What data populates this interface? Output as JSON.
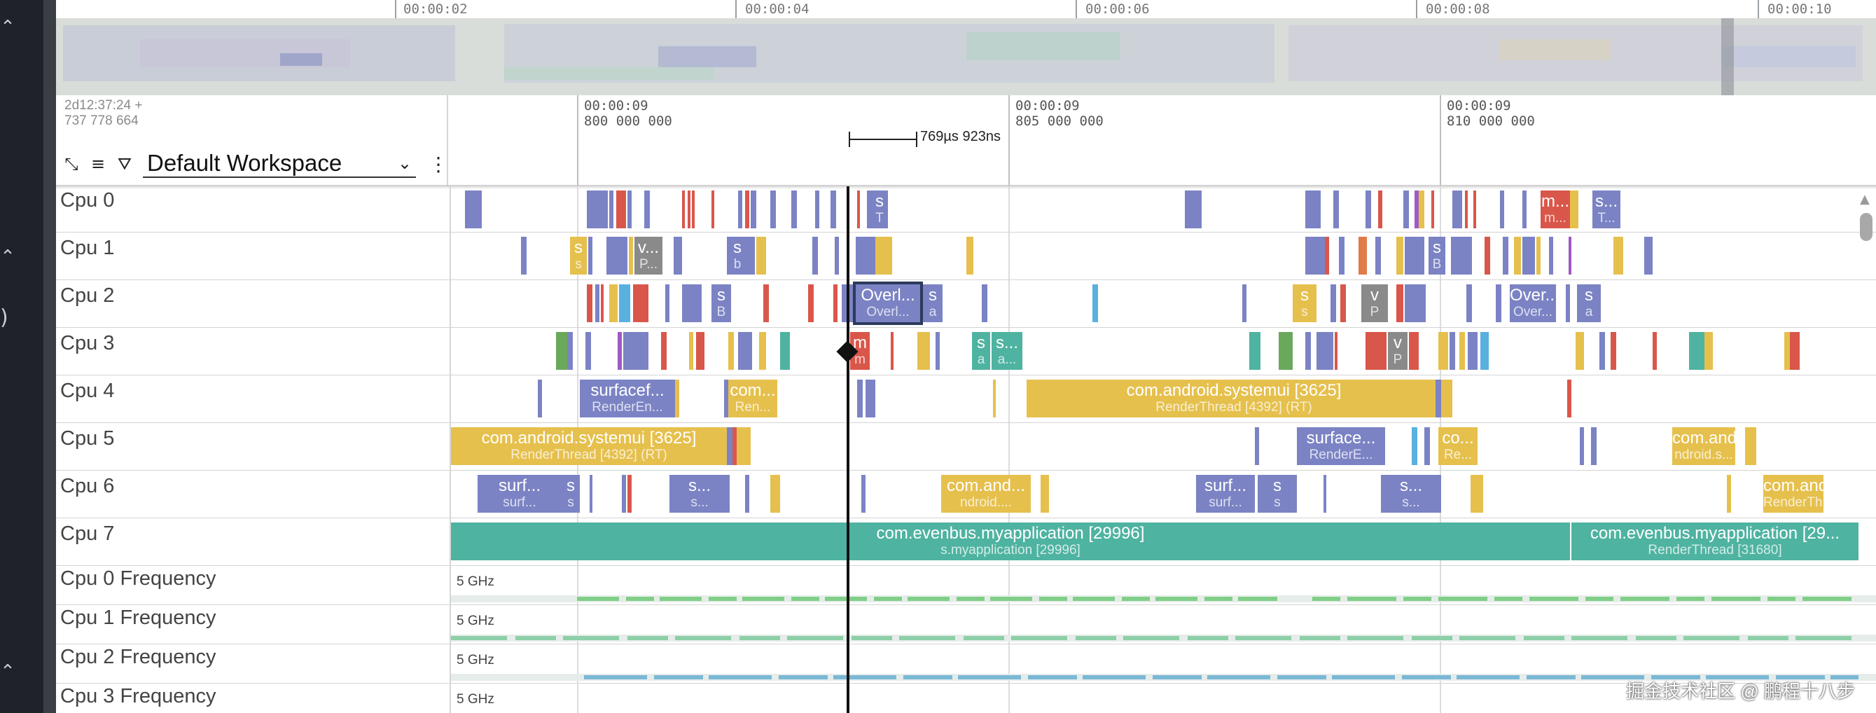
{
  "overview": {
    "ticks": [
      "00:00:02",
      "00:00:04",
      "00:00:06",
      "00:00:08",
      "00:00:10"
    ]
  },
  "header": {
    "time_origin_line1": "2d12:37:24  +",
    "time_origin_line2": "737 778 664",
    "workspace": "Default Workspace",
    "ticks": [
      {
        "line1": "00:00:09",
        "line2": "800 000 000"
      },
      {
        "line1": "00:00:09",
        "line2": "805 000 000"
      },
      {
        "line1": "00:00:09",
        "line2": "810 000 000"
      }
    ],
    "span_label": "769µs 923ns"
  },
  "tracks": {
    "cpu0": "Cpu 0",
    "cpu1": "Cpu 1",
    "cpu2": "Cpu 2",
    "cpu3": "Cpu 3",
    "cpu4": "Cpu 4",
    "cpu5": "Cpu 5",
    "cpu6": "Cpu 6",
    "cpu7": "Cpu 7",
    "freq0": "Cpu 0 Frequency",
    "freq1": "Cpu 1 Frequency",
    "freq2": "Cpu 2 Frequency",
    "freq3": "Cpu 3 Frequency"
  },
  "freq_scale": "5 GHz",
  "slices": {
    "cpu0_a": {
      "t1": "s",
      "t2": "T"
    },
    "cpu0_b": {
      "t1": "m...",
      "t2": "m..."
    },
    "cpu0_c": {
      "t1": "s...",
      "t2": "T..."
    },
    "cpu1_a": {
      "t1": "s",
      "t2": "s"
    },
    "cpu1_b": {
      "t1": "v...",
      "t2": "P..."
    },
    "cpu1_c": {
      "t1": "s",
      "t2": "b"
    },
    "cpu1_d": {
      "t1": "s",
      "t2": "B"
    },
    "cpu2_a": {
      "t1": "s",
      "t2": "B"
    },
    "cpu2_sel": {
      "t1": "Overl...",
      "t2": "Overl..."
    },
    "cpu2_b": {
      "t1": "s",
      "t2": "a"
    },
    "cpu2_c": {
      "t1": "s",
      "t2": "s"
    },
    "cpu2_d": {
      "t1": "v",
      "t2": "P"
    },
    "cpu2_e": {
      "t1": "Over...",
      "t2": "Over..."
    },
    "cpu2_f": {
      "t1": "s",
      "t2": "a"
    },
    "cpu3_a": {
      "t1": "m",
      "t2": "m"
    },
    "cpu3_b": {
      "t1": "s",
      "t2": "a"
    },
    "cpu3_c": {
      "t1": "s...",
      "t2": "a..."
    },
    "cpu3_d": {
      "t1": "v",
      "t2": "P"
    },
    "cpu4_a": {
      "t1": "surfacef...",
      "t2": "RenderEn..."
    },
    "cpu4_b": {
      "t1": "com...",
      "t2": "Ren..."
    },
    "cpu4_c": {
      "t1": "com.android.systemui [3625]",
      "t2": "RenderThread [4392] (RT)"
    },
    "cpu5_a": {
      "t1": "com.android.systemui [3625]",
      "t2": "RenderThread [4392] (RT)"
    },
    "cpu5_b": {
      "t1": "surface...",
      "t2": "RenderE..."
    },
    "cpu5_c": {
      "t1": "co...",
      "t2": "Re..."
    },
    "cpu5_d": {
      "t1": "com.andr...",
      "t2": "ndroid.s..."
    },
    "cpu6_a": {
      "t1": "surf...",
      "t2": "surf..."
    },
    "cpu6_b": {
      "t1": "s",
      "t2": "s"
    },
    "cpu6_c": {
      "t1": "s...",
      "t2": "s..."
    },
    "cpu6_d": {
      "t1": "com.and...",
      "t2": "ndroid...."
    },
    "cpu6_e": {
      "t1": "surf...",
      "t2": "surf..."
    },
    "cpu6_f": {
      "t1": "s",
      "t2": "s"
    },
    "cpu6_g": {
      "t1": "s...",
      "t2": "s..."
    },
    "cpu6_h": {
      "t1": "com.andr...",
      "t2": "RenderTh..."
    },
    "cpu7_a": {
      "t1": "com.evenbus.myapplication [29996]",
      "t2": "s.myapplication [29996]"
    },
    "cpu7_b": {
      "t1": "com.evenbus.myapplication [29...",
      "t2": "RenderThread [31680]"
    }
  },
  "rail_char": ")",
  "watermark": "掘金技术社区 @ 鹏程十八步",
  "colors": {
    "blue": "#7b83c4",
    "yellow": "#e6c04d",
    "teal": "#4fb3a1",
    "red": "#d9574a",
    "gray": "#8a8a8a",
    "purple": "#9c5bc4",
    "green": "#6aa85c",
    "orange": "#e07c4a",
    "sky": "#5ab0e0"
  }
}
